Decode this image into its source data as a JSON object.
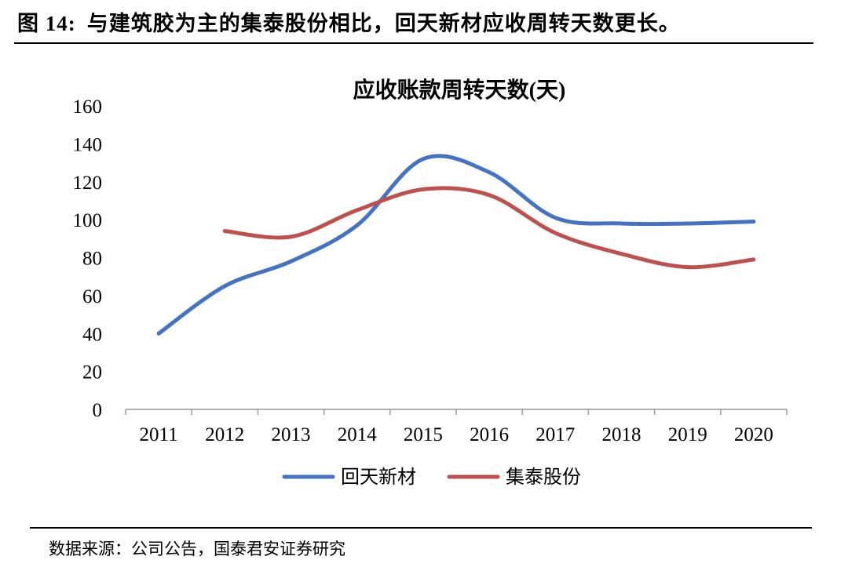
{
  "figure": {
    "number": "图 14:",
    "caption": "与建筑胶为主的集泰股份相比，回天新材应收周转天数更长。"
  },
  "source_note": "数据来源：公司公告，国泰君安证券研究",
  "chart_data": {
    "type": "line",
    "title": "应收账款周转天数(天)",
    "xlabel": "",
    "ylabel": "",
    "categories": [
      "2011",
      "2012",
      "2013",
      "2014",
      "2015",
      "2016",
      "2017",
      "2018",
      "2019",
      "2020"
    ],
    "ylim": [
      0,
      160
    ],
    "yticks": [
      0,
      20,
      40,
      60,
      80,
      100,
      120,
      140,
      160
    ],
    "smooth": true,
    "grid": false,
    "legend_position": "bottom",
    "series": [
      {
        "name": "回天新材",
        "color": "#4472C4",
        "values": [
          40,
          65,
          78,
          97,
          132,
          125,
          101,
          98,
          98,
          99
        ]
      },
      {
        "name": "集泰股份",
        "color": "#C0504D",
        "values": [
          null,
          94,
          91,
          105,
          116,
          113,
          93,
          82,
          75,
          79
        ]
      }
    ]
  }
}
